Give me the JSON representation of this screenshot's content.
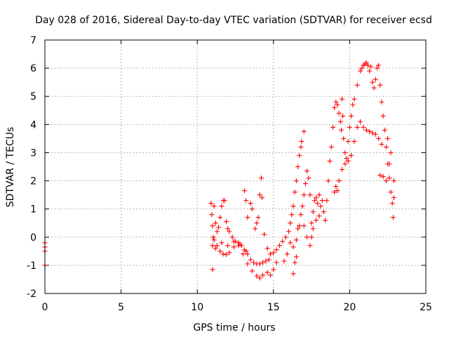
{
  "chart_data": {
    "type": "scatter",
    "title": "Day 028 of 2016, Sidereal Day-to-day VTEC variation (SDTVAR) for receiver ecsd",
    "xlabel": "GPS time / hours",
    "ylabel": "SDTVAR / TECUs",
    "xlim": [
      0,
      25
    ],
    "ylim": [
      -2,
      7
    ],
    "xticks": [
      "0",
      "5",
      "10",
      "15",
      "20",
      "25"
    ],
    "yticks": [
      "-2",
      "-1",
      "0",
      "1",
      "2",
      "3",
      "4",
      "5",
      "6",
      "7"
    ],
    "grid": true,
    "marker": "+",
    "marker_color": "#ff0000",
    "series": [
      {
        "points": [
          [
            0.0,
            -0.2
          ],
          [
            0.0,
            -0.35
          ],
          [
            0.0,
            -0.5
          ],
          [
            0.0,
            -1.0
          ],
          [
            10.9,
            1.2
          ],
          [
            10.95,
            0.8
          ],
          [
            11.0,
            0.4
          ],
          [
            11.0,
            -0.3
          ],
          [
            11.0,
            -1.15
          ],
          [
            11.05,
            0.0
          ],
          [
            11.1,
            1.1
          ],
          [
            11.2,
            0.5
          ],
          [
            11.3,
            0.2
          ],
          [
            11.4,
            0.35
          ],
          [
            11.5,
            0.7
          ],
          [
            11.6,
            1.1
          ],
          [
            11.7,
            1.3
          ],
          [
            11.8,
            1.3
          ],
          [
            11.9,
            0.55
          ],
          [
            12.0,
            0.3
          ],
          [
            12.1,
            0.2
          ],
          [
            12.3,
            0.0
          ],
          [
            12.5,
            -0.15
          ],
          [
            12.7,
            -0.2
          ],
          [
            12.9,
            -0.3
          ],
          [
            13.1,
            -0.45
          ],
          [
            13.3,
            -0.6
          ],
          [
            13.5,
            -0.8
          ],
          [
            13.7,
            -0.9
          ],
          [
            13.9,
            -0.95
          ],
          [
            14.1,
            -0.95
          ],
          [
            14.3,
            -0.9
          ],
          [
            14.5,
            -0.85
          ],
          [
            14.7,
            -0.8
          ],
          [
            11.1,
            -0.1
          ],
          [
            11.3,
            -0.3
          ],
          [
            11.5,
            -0.5
          ],
          [
            11.7,
            -0.6
          ],
          [
            11.9,
            -0.62
          ],
          [
            12.1,
            -0.55
          ],
          [
            12.4,
            -0.35
          ],
          [
            12.7,
            -0.3
          ],
          [
            13.0,
            -0.6
          ],
          [
            13.3,
            -0.95
          ],
          [
            13.6,
            -1.2
          ],
          [
            13.9,
            -1.38
          ],
          [
            14.1,
            -1.45
          ],
          [
            14.3,
            -1.35
          ],
          [
            14.6,
            -1.25
          ],
          [
            14.8,
            -1.35
          ],
          [
            15.0,
            -1.15
          ],
          [
            15.2,
            -0.9
          ],
          [
            11.2,
            -0.4
          ],
          [
            11.6,
            -0.2
          ],
          [
            12.0,
            -0.3
          ],
          [
            12.4,
            -0.15
          ],
          [
            12.8,
            -0.25
          ],
          [
            13.2,
            -0.5
          ],
          [
            13.1,
            1.65
          ],
          [
            13.2,
            1.3
          ],
          [
            13.3,
            0.7
          ],
          [
            13.5,
            1.2
          ],
          [
            13.6,
            1.0
          ],
          [
            13.8,
            0.3
          ],
          [
            13.9,
            0.5
          ],
          [
            14.0,
            0.7
          ],
          [
            14.1,
            1.5
          ],
          [
            14.2,
            2.1
          ],
          [
            14.25,
            1.4
          ],
          [
            14.4,
            0.1
          ],
          [
            14.6,
            -0.4
          ],
          [
            14.8,
            -0.6
          ],
          [
            15.0,
            -0.55
          ],
          [
            15.2,
            -0.45
          ],
          [
            15.4,
            -0.3
          ],
          [
            15.6,
            -0.15
          ],
          [
            15.8,
            0.0
          ],
          [
            16.0,
            0.2
          ],
          [
            16.1,
            0.5
          ],
          [
            16.2,
            0.8
          ],
          [
            16.3,
            1.1
          ],
          [
            16.4,
            1.6
          ],
          [
            16.5,
            2.0
          ],
          [
            16.6,
            2.5
          ],
          [
            16.7,
            2.9
          ],
          [
            16.8,
            3.2
          ],
          [
            16.85,
            3.4
          ],
          [
            17.0,
            3.75
          ],
          [
            15.7,
            -0.85
          ],
          [
            15.9,
            -0.6
          ],
          [
            16.1,
            -0.2
          ],
          [
            16.3,
            -0.35
          ],
          [
            16.5,
            -0.1
          ],
          [
            16.7,
            0.4
          ],
          [
            16.9,
            1.1
          ],
          [
            17.0,
            1.5
          ],
          [
            17.1,
            1.9
          ],
          [
            17.2,
            2.35
          ],
          [
            17.3,
            2.1
          ],
          [
            17.4,
            1.5
          ],
          [
            16.3,
            -1.3
          ],
          [
            16.4,
            -0.9
          ],
          [
            16.5,
            -0.7
          ],
          [
            16.6,
            0.3
          ],
          [
            16.8,
            0.8
          ],
          [
            17.0,
            0.4
          ],
          [
            17.2,
            0.0
          ],
          [
            17.4,
            -0.3
          ],
          [
            17.5,
            0.0
          ],
          [
            17.6,
            0.3
          ],
          [
            17.8,
            0.6
          ],
          [
            18.0,
            0.75
          ],
          [
            17.5,
            0.5
          ],
          [
            17.6,
            0.9
          ],
          [
            17.7,
            1.3
          ],
          [
            17.8,
            1.4
          ],
          [
            17.9,
            1.2
          ],
          [
            18.0,
            1.5
          ],
          [
            18.1,
            1.1
          ],
          [
            18.2,
            1.3
          ],
          [
            18.3,
            0.9
          ],
          [
            18.4,
            0.6
          ],
          [
            18.5,
            1.3
          ],
          [
            18.6,
            2.0
          ],
          [
            18.7,
            2.7
          ],
          [
            18.8,
            3.2
          ],
          [
            18.9,
            3.9
          ],
          [
            19.0,
            4.6
          ],
          [
            19.1,
            4.8
          ],
          [
            19.2,
            4.7
          ],
          [
            19.3,
            4.4
          ],
          [
            19.4,
            4.1
          ],
          [
            19.45,
            3.8
          ],
          [
            19.5,
            4.9
          ],
          [
            19.55,
            4.3
          ],
          [
            19.6,
            3.5
          ],
          [
            19.7,
            3.0
          ],
          [
            19.8,
            2.8
          ],
          [
            19.9,
            3.4
          ],
          [
            20.0,
            3.9
          ],
          [
            20.1,
            4.3
          ],
          [
            20.2,
            4.7
          ],
          [
            19.0,
            1.6
          ],
          [
            19.1,
            1.8
          ],
          [
            19.2,
            1.65
          ],
          [
            19.3,
            2.0
          ],
          [
            19.5,
            2.4
          ],
          [
            19.7,
            2.6
          ],
          [
            19.9,
            2.7
          ],
          [
            20.1,
            2.9
          ],
          [
            20.3,
            3.4
          ],
          [
            20.5,
            3.9
          ],
          [
            20.7,
            4.1
          ],
          [
            20.9,
            3.9
          ],
          [
            21.1,
            3.8
          ],
          [
            21.3,
            3.75
          ],
          [
            21.5,
            3.7
          ],
          [
            21.7,
            3.65
          ],
          [
            21.9,
            3.5
          ],
          [
            22.1,
            3.3
          ],
          [
            20.3,
            4.9
          ],
          [
            20.5,
            5.4
          ],
          [
            20.7,
            5.9
          ],
          [
            20.8,
            6.0
          ],
          [
            20.9,
            6.1
          ],
          [
            21.0,
            6.15
          ],
          [
            21.1,
            6.2
          ],
          [
            21.2,
            6.1
          ],
          [
            21.3,
            5.9
          ],
          [
            21.4,
            6.05
          ],
          [
            21.5,
            5.5
          ],
          [
            21.6,
            5.3
          ],
          [
            21.7,
            5.6
          ],
          [
            21.8,
            6.0
          ],
          [
            21.9,
            6.1
          ],
          [
            22.0,
            5.4
          ],
          [
            22.1,
            4.8
          ],
          [
            22.2,
            4.3
          ],
          [
            22.3,
            3.8
          ],
          [
            22.4,
            3.2
          ],
          [
            22.5,
            2.6
          ],
          [
            22.6,
            2.1
          ],
          [
            22.7,
            1.6
          ],
          [
            22.8,
            1.2
          ],
          [
            22.85,
            0.7
          ],
          [
            22.9,
            1.4
          ],
          [
            22.9,
            2.0
          ],
          [
            22.0,
            2.2
          ],
          [
            22.2,
            2.15
          ],
          [
            22.4,
            2.0
          ],
          [
            22.6,
            2.6
          ],
          [
            22.7,
            3.0
          ],
          [
            22.5,
            3.5
          ]
        ]
      }
    ]
  }
}
